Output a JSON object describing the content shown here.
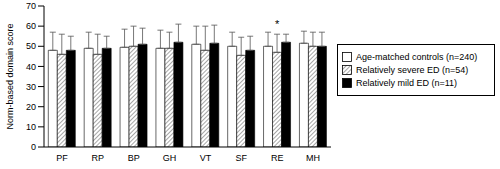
{
  "chart_data": {
    "type": "bar",
    "y_label": "Norm-based domain score",
    "categories": [
      "PF",
      "RP",
      "BP",
      "GH",
      "VT",
      "SF",
      "RE",
      "MH"
    ],
    "series": [
      {
        "name": "Age-matched controls (n=240)",
        "color": "#ffffff",
        "values": [
          48,
          49,
          49.5,
          49,
          51,
          50,
          50,
          51.5
        ],
        "errors": [
          9,
          8,
          9,
          9,
          9,
          7,
          7,
          6
        ]
      },
      {
        "name": "Relatively severe ED (n=54)",
        "color": "#808080",
        "values": [
          46,
          46,
          50,
          49,
          48,
          45.5,
          47,
          50
        ],
        "errors": [
          10,
          10,
          10,
          8,
          12,
          9,
          9,
          7
        ]
      },
      {
        "name": "Relatively mild ED (n=11)",
        "color": "#000000",
        "values": [
          48,
          49,
          51,
          52,
          51.5,
          48,
          52,
          50
        ],
        "errors": [
          7,
          6,
          8,
          9,
          9,
          7,
          4,
          7
        ]
      }
    ],
    "ylim": [
      0,
      70
    ],
    "yticks": [
      0,
      10,
      20,
      30,
      40,
      50,
      60,
      70
    ],
    "grid": false,
    "legend": "right",
    "annotations": [
      {
        "text": "*",
        "category": "RE"
      }
    ]
  }
}
